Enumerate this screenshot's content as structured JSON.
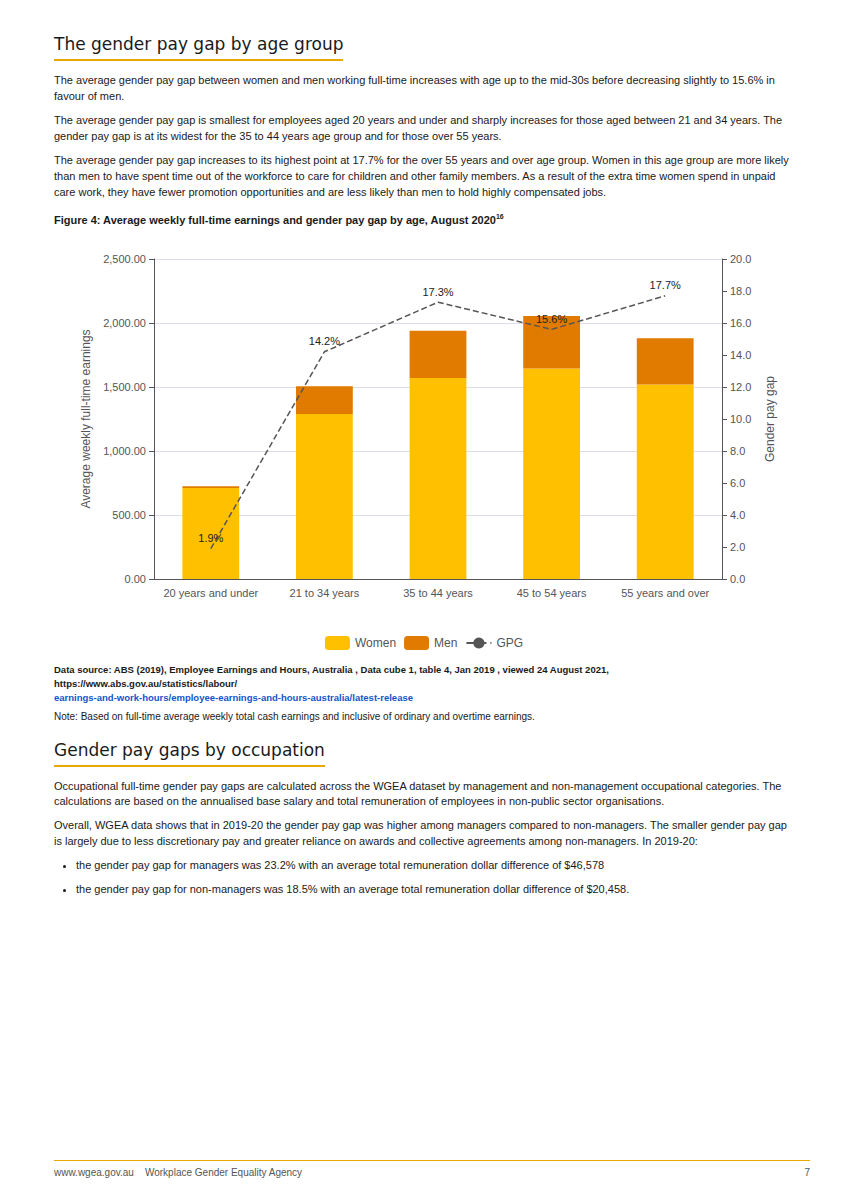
{
  "page": {
    "heading": "The gender pay gap by age group",
    "paragraphs": [
      "The average gender pay gap between women and men working full-time increases with age up to the mid-30s before decreasing slightly to 15.6% in favour of men.",
      "The average gender pay gap is smallest for employees aged 20 years and under and sharply increases for those aged between 21 and 34 years. The gender pay gap is at its widest for the 35 to 44 years age group and for those over 55 years.",
      "The average gender pay gap increases to its highest point at 17.7% for the over 55 years and over age group. Women in this age group are more likely than men to have spent time out of the workforce to care for children and other family members. As a result of the extra time women spend in unpaid care work, they have fewer promotion opportunities and are less likely than men to hold highly compensated jobs."
    ],
    "caption": "Figure 4: Average weekly full-time earnings and gender pay gap by age, August 2020",
    "caption_superscript": "16",
    "data_source": "Data source: ABS (2019), Employee Earnings and Hours, Australia , Data cube 1, table 4, Jan 2019 , viewed 24 August 2021, https://www.abs.gov.au/statistics/labour/",
    "data_source_link": "earnings-and-work-hours/employee-earnings-and-hours-australia/latest-release",
    "note": "Note: Based on full-time average weekly total cash earnings and inclusive of ordinary and overtime earnings.",
    "section2_heading": "Gender pay gaps by occupation",
    "section2_paragraphs": [
      "Occupational full-time gender pay gaps are calculated across the WGEA dataset by management and non-management occupational categories. The calculations are based on the annualised base salary and total remuneration of employees in non-public sector organisations.",
      "Overall, WGEA data shows that in 2019-20 the gender pay gap was higher among managers compared to non-managers. The smaller gender pay gap is largely due to less discretionary pay and greater reliance on awards and collective agreements among non-managers. In 2019-20:"
    ],
    "section2_bullets": [
      "the gender pay gap for managers was 23.2% with an average total remuneration dollar difference of $46,578",
      "the gender pay gap for non-managers was 18.5% with an average total remuneration dollar difference of $20,458."
    ],
    "footer_text": "www.wgea.gov.au    Workplace Gender Equality Agency",
    "footer_page": "7"
  },
  "chart_data": {
    "type": "bar",
    "categories": [
      "20 years and under",
      "21 to 34 years",
      "35 to 44 years",
      "45 to 54 years",
      "55 years and over"
    ],
    "series": [
      {
        "name": "Women",
        "color": "#FFC000",
        "values": [
          710,
          1290,
          1570,
          1645,
          1520
        ]
      },
      {
        "name": "Men",
        "color": "#E07B00",
        "values": [
          15,
          215,
          370,
          410,
          360
        ]
      },
      {
        "name": "GPG",
        "type": "line",
        "axis": "y2",
        "color": "#555555",
        "line_style": "dashed",
        "data_labels": true,
        "values": [
          1.9,
          14.2,
          17.3,
          15.6,
          17.7
        ],
        "value_labels": [
          "1.9%",
          "14.2%",
          "17.3%",
          "15.6%",
          "17.7%"
        ]
      }
    ],
    "stacked": true,
    "ylabel": "Average weekly full-time earnings",
    "y2label": "Gender pay gap",
    "ylim": [
      0,
      2500
    ],
    "yticks": [
      {
        "value": 0,
        "label": "0.00"
      },
      {
        "value": 500,
        "label": "500.00"
      },
      {
        "value": 1000,
        "label": "1,000.00"
      },
      {
        "value": 1500,
        "label": "1,500.00"
      },
      {
        "value": 2000,
        "label": "2,000.00"
      },
      {
        "value": 2500,
        "label": "2,500.00"
      }
    ],
    "y2lim": [
      0.0,
      20.0
    ],
    "y2ticks": [
      {
        "value": 0.0,
        "label": "0.0"
      },
      {
        "value": 2.0,
        "label": "2.0"
      },
      {
        "value": 4.0,
        "label": "4.0"
      },
      {
        "value": 6.0,
        "label": "6.0"
      },
      {
        "value": 8.0,
        "label": "8.0"
      },
      {
        "value": 10.0,
        "label": "10.0"
      },
      {
        "value": 12.0,
        "label": "12.0"
      },
      {
        "value": 14.0,
        "label": "14.0"
      },
      {
        "value": 16.0,
        "label": "16.0"
      },
      {
        "value": 18.0,
        "label": "18.0"
      },
      {
        "value": 20.0,
        "label": "20.0"
      }
    ],
    "grid": true,
    "legend": "bottom"
  }
}
